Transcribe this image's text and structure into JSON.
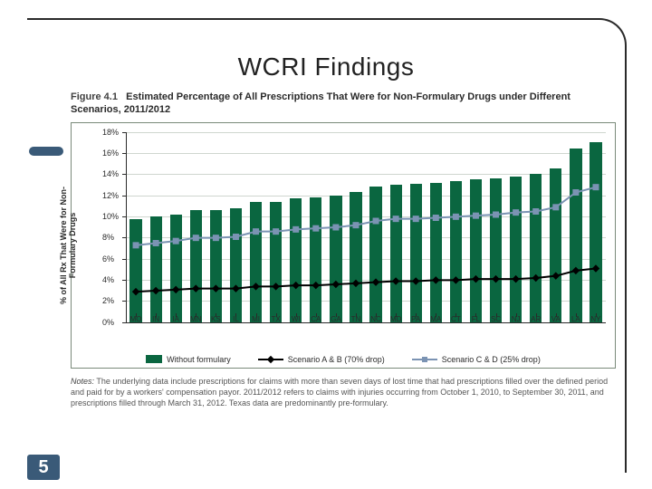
{
  "slide": {
    "title": "WCRI Findings",
    "pageNumber": "5"
  },
  "figure": {
    "label": "Figure 4.1",
    "title": "Estimated Percentage of All Prescriptions That Were for Non-Formulary Drugs under Different Scenarios, 2011/2012",
    "notesLabel": "Notes:",
    "notes": "The underlying data include prescriptions for claims with more than seven days of lost time that had prescriptions filled over the defined period and paid for by a workers' compensation payor. 2011/2012 refers to claims with injuries occurring from October 1, 2010, to September 30, 2011, and prescriptions filled through March 31, 2012. Texas data are predominantly pre-formulary."
  },
  "chart": {
    "type": "bar+line",
    "background_color": "#ffffff",
    "grid_color": "#cfd6cf",
    "axis_color": "#2a2a2a",
    "border_color": "#7a8a7a",
    "y_axis_label": "% of All Rx That Were for Non-\nFormulary Drugs",
    "ylim": [
      0,
      18
    ],
    "ytick_step": 2,
    "ytick_suffix": "%",
    "tick_fontsize": 9,
    "label_fontsize": 9,
    "bar_color": "#0a6640",
    "bar_width_ratio": 0.6,
    "categories": [
      "MO",
      "IN",
      "IA",
      "MN",
      "KS",
      "IL",
      "MI",
      "TX",
      "WI",
      "CA",
      "GA",
      "TN",
      "NC",
      "MD",
      "PA",
      "MA",
      "CT",
      "FL",
      "SC",
      "NJ",
      "AR",
      "VA",
      "LA",
      "NY"
    ],
    "bar_values": [
      9.7,
      10.0,
      10.2,
      10.6,
      10.6,
      10.8,
      11.4,
      11.4,
      11.7,
      11.8,
      12.0,
      12.3,
      12.8,
      13.0,
      13.1,
      13.2,
      13.3,
      13.5,
      13.6,
      13.8,
      14.0,
      14.5,
      16.4,
      17.0
    ],
    "series_a": {
      "name": "Scenario A & B (70% drop)",
      "color": "#000000",
      "marker": "diamond",
      "marker_size": 6,
      "line_width": 2,
      "values": [
        2.9,
        3.0,
        3.1,
        3.2,
        3.2,
        3.2,
        3.4,
        3.4,
        3.5,
        3.5,
        3.6,
        3.7,
        3.8,
        3.9,
        3.9,
        4.0,
        4.0,
        4.1,
        4.1,
        4.1,
        4.2,
        4.4,
        4.9,
        5.1
      ]
    },
    "series_c": {
      "name": "Scenario C & D (25% drop)",
      "color": "#7b93b3",
      "marker": "square",
      "marker_size": 7,
      "line_width": 2,
      "values": [
        7.3,
        7.5,
        7.7,
        8.0,
        8.0,
        8.1,
        8.6,
        8.6,
        8.8,
        8.9,
        9.0,
        9.2,
        9.6,
        9.8,
        9.8,
        9.9,
        10.0,
        10.1,
        10.2,
        10.4,
        10.5,
        10.9,
        12.3,
        12.8
      ]
    },
    "legend": {
      "without": "Without formulary",
      "a": "Scenario A & B (70% drop)",
      "c": "Scenario C & D (25% drop)"
    }
  }
}
